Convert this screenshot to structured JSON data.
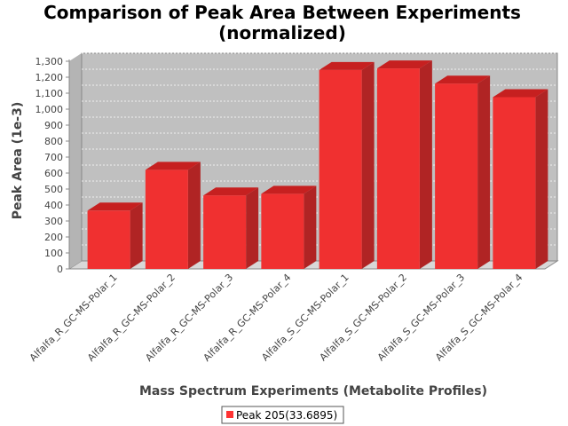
{
  "chart_data": {
    "type": "bar",
    "title": [
      "Comparison of Peak Area Between Experiments",
      "(normalized)"
    ],
    "xlabel": "Mass Spectrum Experiments (Metabolite Profiles)",
    "ylabel": "Peak Area (1e-3)",
    "ylim": [
      0,
      1300
    ],
    "yticks": [
      0,
      100,
      200,
      300,
      400,
      500,
      600,
      700,
      800,
      900,
      1000,
      1100,
      1200,
      1300
    ],
    "ytick_labels": [
      "0",
      "100",
      "200",
      "300",
      "400",
      "500",
      "600",
      "700",
      "800",
      "900",
      "1,000",
      "1,100",
      "1,200",
      "1,300"
    ],
    "grid": true,
    "legend_position": "bottom",
    "categories": [
      "Alfalfa_R_GC-MS-Polar_1",
      "Alfalfa_R_GC-MS-Polar_2",
      "Alfalfa_R_GC-MS-Polar_3",
      "Alfalfa_R_GC-MS-Polar_4",
      "Alfalfa_S_GC-MS-Polar_1",
      "Alfalfa_S_GC-MS-Polar_2",
      "Alfalfa_S_GC-MS-Polar_3",
      "Alfalfa_S_GC-MS-Polar_4"
    ],
    "series": [
      {
        "name": "Peak 205(33.6895)",
        "color": "#ff3333",
        "values": [
          365,
          620,
          460,
          470,
          1245,
          1255,
          1160,
          1075
        ]
      }
    ]
  },
  "colors": {
    "plot_background": "#c0c0c0",
    "bar_front": "#f03030",
    "bar_top": "#c62020",
    "bar_side": "#b02424",
    "gridline": "#ffffff"
  }
}
